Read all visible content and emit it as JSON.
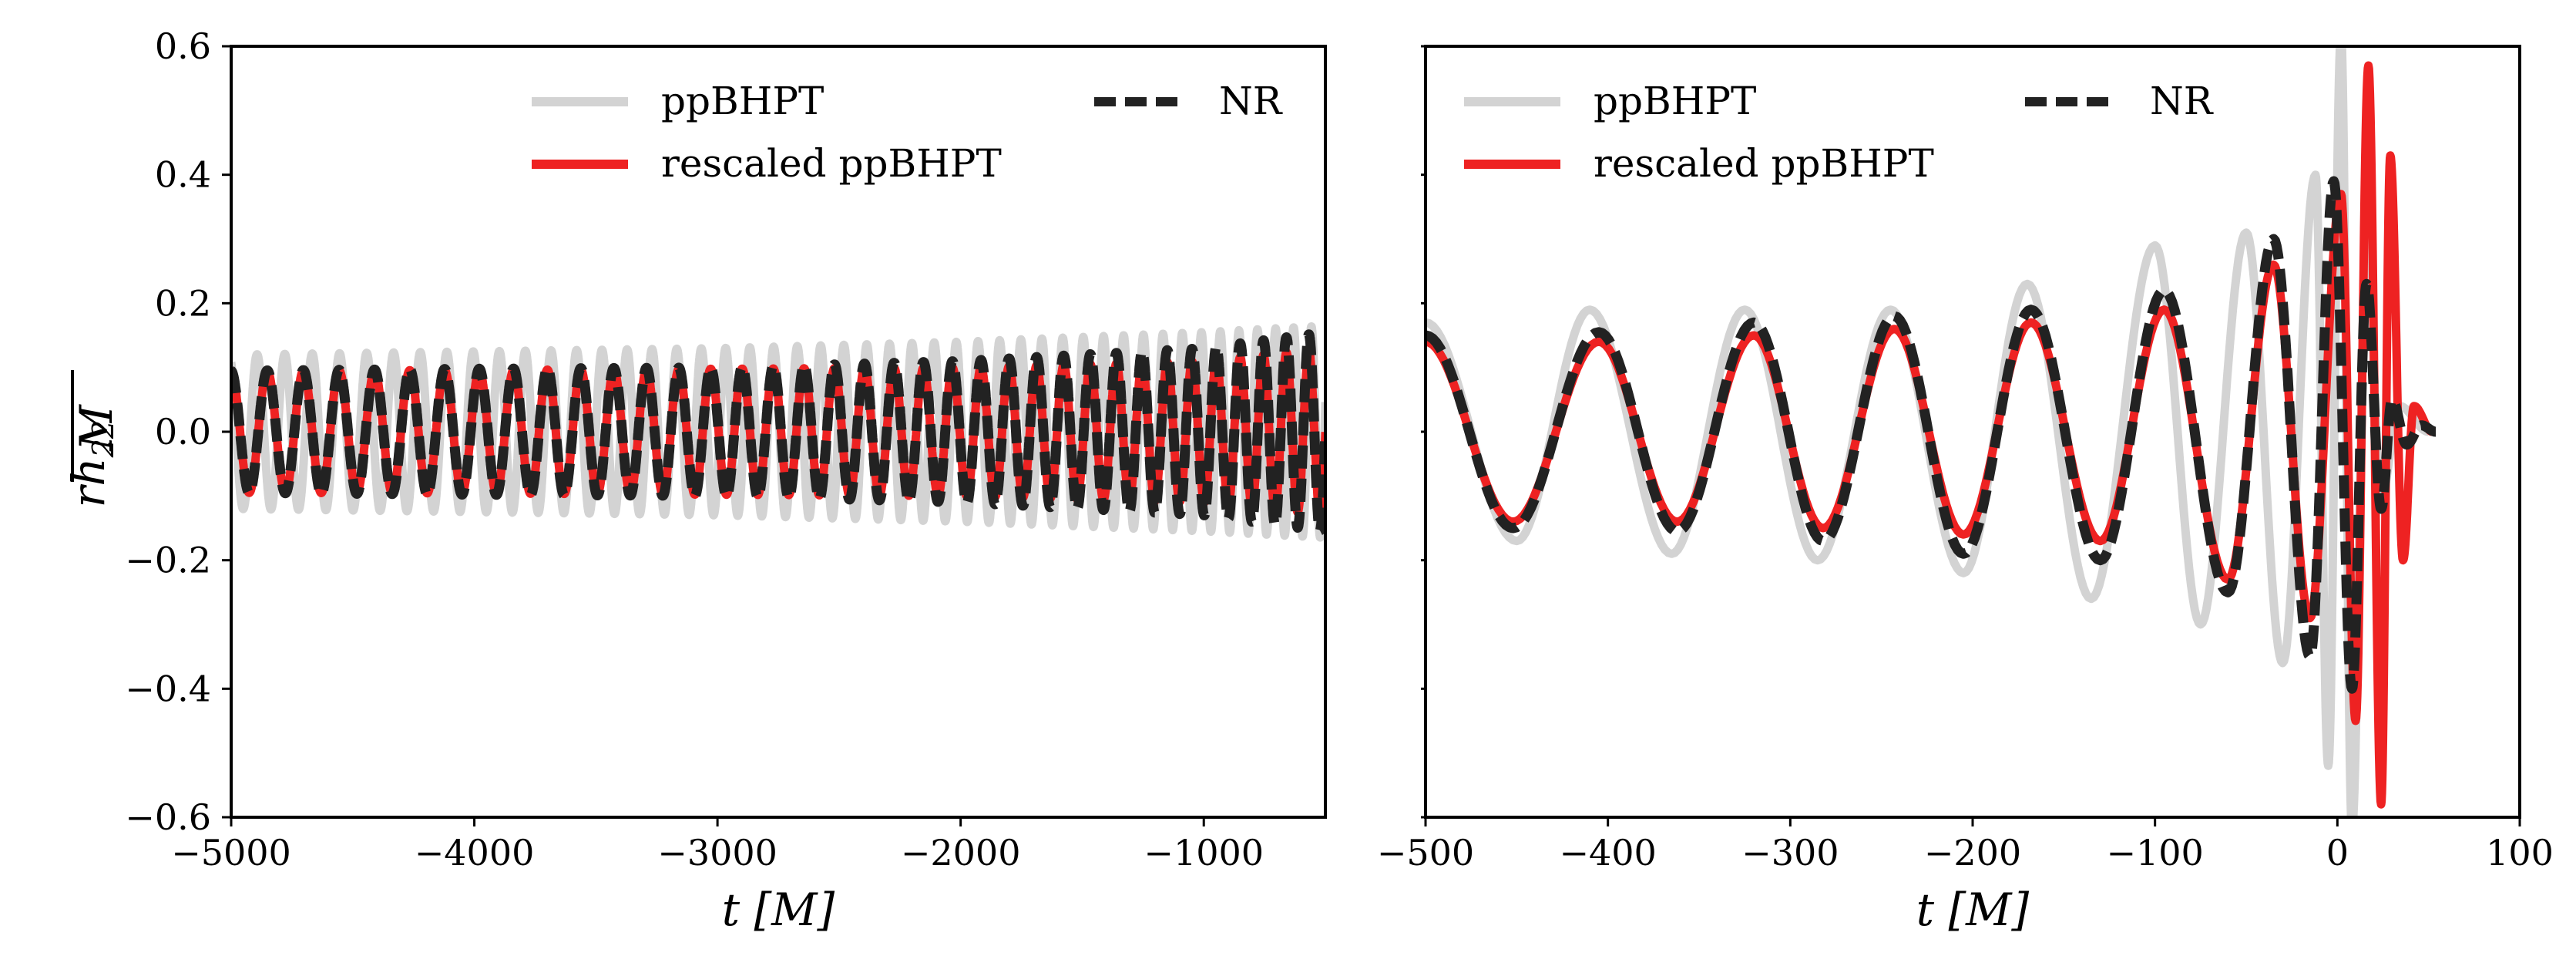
{
  "figure": {
    "ylabel_num": "rh",
    "ylabel_sub": "22",
    "ylabel_den": "M"
  },
  "chart_data": [
    {
      "type": "line",
      "xlabel": "t [M]",
      "ylabel": "rh22/M",
      "xlim": [
        -5000,
        -500
      ],
      "ylim": [
        -0.6,
        0.6
      ],
      "x_ticks": [
        -5000,
        -4000,
        -3000,
        -2000,
        -1000
      ],
      "x_tick_labels": [
        "−5000",
        "−4000",
        "−3000",
        "−2000",
        "−1000"
      ],
      "y_ticks": [
        -0.6,
        -0.4,
        -0.2,
        0.0,
        0.2,
        0.4,
        0.6
      ],
      "y_tick_labels": [
        "−0.6",
        "−0.4",
        "−0.2",
        "0.0",
        "0.2",
        "0.4",
        "0.6"
      ],
      "grid": false,
      "legend": {
        "placement": "top",
        "entries": [
          {
            "label": "ppBHPT",
            "color": "#d3d3d3",
            "style": "solid"
          },
          {
            "label": "NR",
            "color": "#222222",
            "style": "dashed"
          },
          {
            "label": "rescaled ppBHPT",
            "color": "#ee2222",
            "style": "solid"
          }
        ]
      },
      "series": [
        {
          "name": "ppBHPT",
          "color": "#d3d3d3",
          "style": "solid",
          "x": [
            -5000,
            -4000,
            -3000,
            -2000,
            -1000,
            -500
          ],
          "amplitude": [
            0.12,
            0.125,
            0.13,
            0.14,
            0.155,
            0.165
          ],
          "period": [
            115,
            108,
            100,
            90,
            78,
            72
          ]
        },
        {
          "name": "rescaled ppBHPT",
          "color": "#ee2222",
          "style": "solid",
          "x": [
            -5000,
            -4000,
            -3000,
            -2000,
            -1000,
            -500
          ],
          "amplitude": [
            0.095,
            0.096,
            0.098,
            0.1,
            0.11,
            0.13
          ],
          "period": [
            150,
            142,
            130,
            118,
            100,
            90
          ]
        },
        {
          "name": "NR",
          "color": "#222222",
          "style": "dashed",
          "x": [
            -5000,
            -4000,
            -3000,
            -2000,
            -1000,
            -500
          ],
          "amplitude": [
            0.095,
            0.098,
            0.1,
            0.11,
            0.13,
            0.155
          ],
          "period": [
            150,
            142,
            130,
            118,
            100,
            90
          ]
        }
      ]
    },
    {
      "type": "line",
      "xlabel": "t [M]",
      "ylabel": "",
      "xlim": [
        -500,
        100
      ],
      "ylim": [
        -0.6,
        0.6
      ],
      "x_ticks": [
        -500,
        -400,
        -300,
        -200,
        -100,
        0,
        100
      ],
      "x_tick_labels": [
        "−500",
        "−400",
        "−300",
        "−200",
        "−100",
        "0",
        "100"
      ],
      "y_ticks": [
        -0.6,
        -0.4,
        -0.2,
        0.0,
        0.2,
        0.4,
        0.6
      ],
      "grid": false,
      "legend": {
        "placement": "top",
        "entries": [
          {
            "label": "ppBHPT",
            "color": "#d3d3d3",
            "style": "solid"
          },
          {
            "label": "NR",
            "color": "#222222",
            "style": "dashed"
          },
          {
            "label": "rescaled ppBHPT",
            "color": "#ee2222",
            "style": "solid"
          }
        ]
      },
      "series": [
        {
          "name": "ppBHPT",
          "color": "#d3d3d3",
          "style": "solid",
          "peaks": [
            [
              -500,
              0.17
            ],
            [
              -450,
              -0.17
            ],
            [
              -410,
              0.19
            ],
            [
              -365,
              -0.19
            ],
            [
              -325,
              0.19
            ],
            [
              -285,
              -0.2
            ],
            [
              -245,
              0.19
            ],
            [
              -205,
              -0.22
            ],
            [
              -170,
              0.23
            ],
            [
              -135,
              -0.26
            ],
            [
              -100,
              0.29
            ],
            [
              -75,
              -0.3
            ],
            [
              -50,
              0.31
            ],
            [
              -30,
              -0.36
            ],
            [
              -12,
              0.4
            ],
            [
              -5,
              -0.52
            ],
            [
              2,
              0.62
            ],
            [
              8,
              -0.62
            ],
            [
              16,
              0.3
            ],
            [
              24,
              -0.1
            ],
            [
              34,
              0.04
            ],
            [
              50,
              0.0
            ]
          ]
        },
        {
          "name": "rescaled ppBHPT",
          "color": "#ee2222",
          "style": "solid",
          "peaks": [
            [
              -500,
              0.14
            ],
            [
              -452,
              -0.14
            ],
            [
              -405,
              0.14
            ],
            [
              -362,
              -0.14
            ],
            [
              -320,
              0.15
            ],
            [
              -282,
              -0.15
            ],
            [
              -243,
              0.16
            ],
            [
              -205,
              -0.16
            ],
            [
              -168,
              0.17
            ],
            [
              -130,
              -0.17
            ],
            [
              -95,
              0.19
            ],
            [
              -60,
              -0.23
            ],
            [
              -35,
              0.26
            ],
            [
              -15,
              -0.29
            ],
            [
              2,
              0.37
            ],
            [
              10,
              -0.45
            ],
            [
              17,
              0.57
            ],
            [
              24,
              -0.58
            ],
            [
              29,
              0.43
            ],
            [
              36,
              -0.2
            ],
            [
              42,
              0.04
            ],
            [
              52,
              0.0
            ]
          ]
        },
        {
          "name": "NR",
          "color": "#222222",
          "style": "dashed",
          "peaks": [
            [
              -500,
              0.15
            ],
            [
              -452,
              -0.15
            ],
            [
              -405,
              0.155
            ],
            [
              -362,
              -0.155
            ],
            [
              -320,
              0.17
            ],
            [
              -282,
              -0.17
            ],
            [
              -243,
              0.18
            ],
            [
              -205,
              -0.19
            ],
            [
              -168,
              0.19
            ],
            [
              -130,
              -0.2
            ],
            [
              -95,
              0.22
            ],
            [
              -60,
              -0.25
            ],
            [
              -35,
              0.3
            ],
            [
              -15,
              -0.35
            ],
            [
              -2,
              0.39
            ],
            [
              8,
              -0.4
            ],
            [
              16,
              0.23
            ],
            [
              24,
              -0.12
            ],
            [
              30,
              0.05
            ],
            [
              38,
              -0.02
            ],
            [
              46,
              0.01
            ],
            [
              54,
              0.0
            ]
          ]
        }
      ]
    }
  ]
}
